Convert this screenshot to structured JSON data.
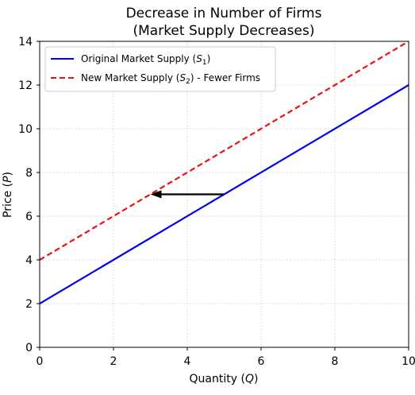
{
  "chart_data": {
    "type": "line",
    "title": [
      "Decrease in Number of Firms",
      "(Market Supply Decreases)"
    ],
    "xlabel": {
      "text": "Quantity (",
      "var": "Q",
      "suffix": ")"
    },
    "ylabel": {
      "text": "Price (",
      "var": "P",
      "suffix": ")"
    },
    "xlim": [
      0,
      10
    ],
    "ylim": [
      0,
      14
    ],
    "xticks": [
      0,
      2,
      4,
      6,
      8,
      10
    ],
    "yticks": [
      0,
      2,
      4,
      6,
      8,
      10,
      12,
      14
    ],
    "xtick_labels": [
      "0",
      "2",
      "4",
      "6",
      "8",
      "10"
    ],
    "ytick_labels": [
      "0",
      "2",
      "4",
      "6",
      "8",
      "10",
      "12",
      "14"
    ],
    "grid": true,
    "legend_position": "top-left",
    "series": [
      {
        "name": "Original Market Supply (S1)",
        "legend_prefix": "Original Market Supply (",
        "legend_var": "S",
        "legend_sub": "1",
        "legend_suffix": ")",
        "color": "#0000ee",
        "style": "solid",
        "x": [
          0,
          10
        ],
        "y": [
          2,
          12
        ]
      },
      {
        "name": "New Market Supply (S2) - Fewer Firms",
        "legend_prefix": "New Market Supply (",
        "legend_var": "S",
        "legend_sub": "2",
        "legend_suffix": ") - Fewer Firms",
        "color": "#ee1111",
        "style": "dashed",
        "x": [
          0,
          10
        ],
        "y": [
          4,
          14
        ]
      }
    ],
    "annotations": [
      {
        "type": "arrow",
        "from": [
          5,
          7
        ],
        "to": [
          3,
          7
        ],
        "color": "#000000"
      }
    ]
  }
}
